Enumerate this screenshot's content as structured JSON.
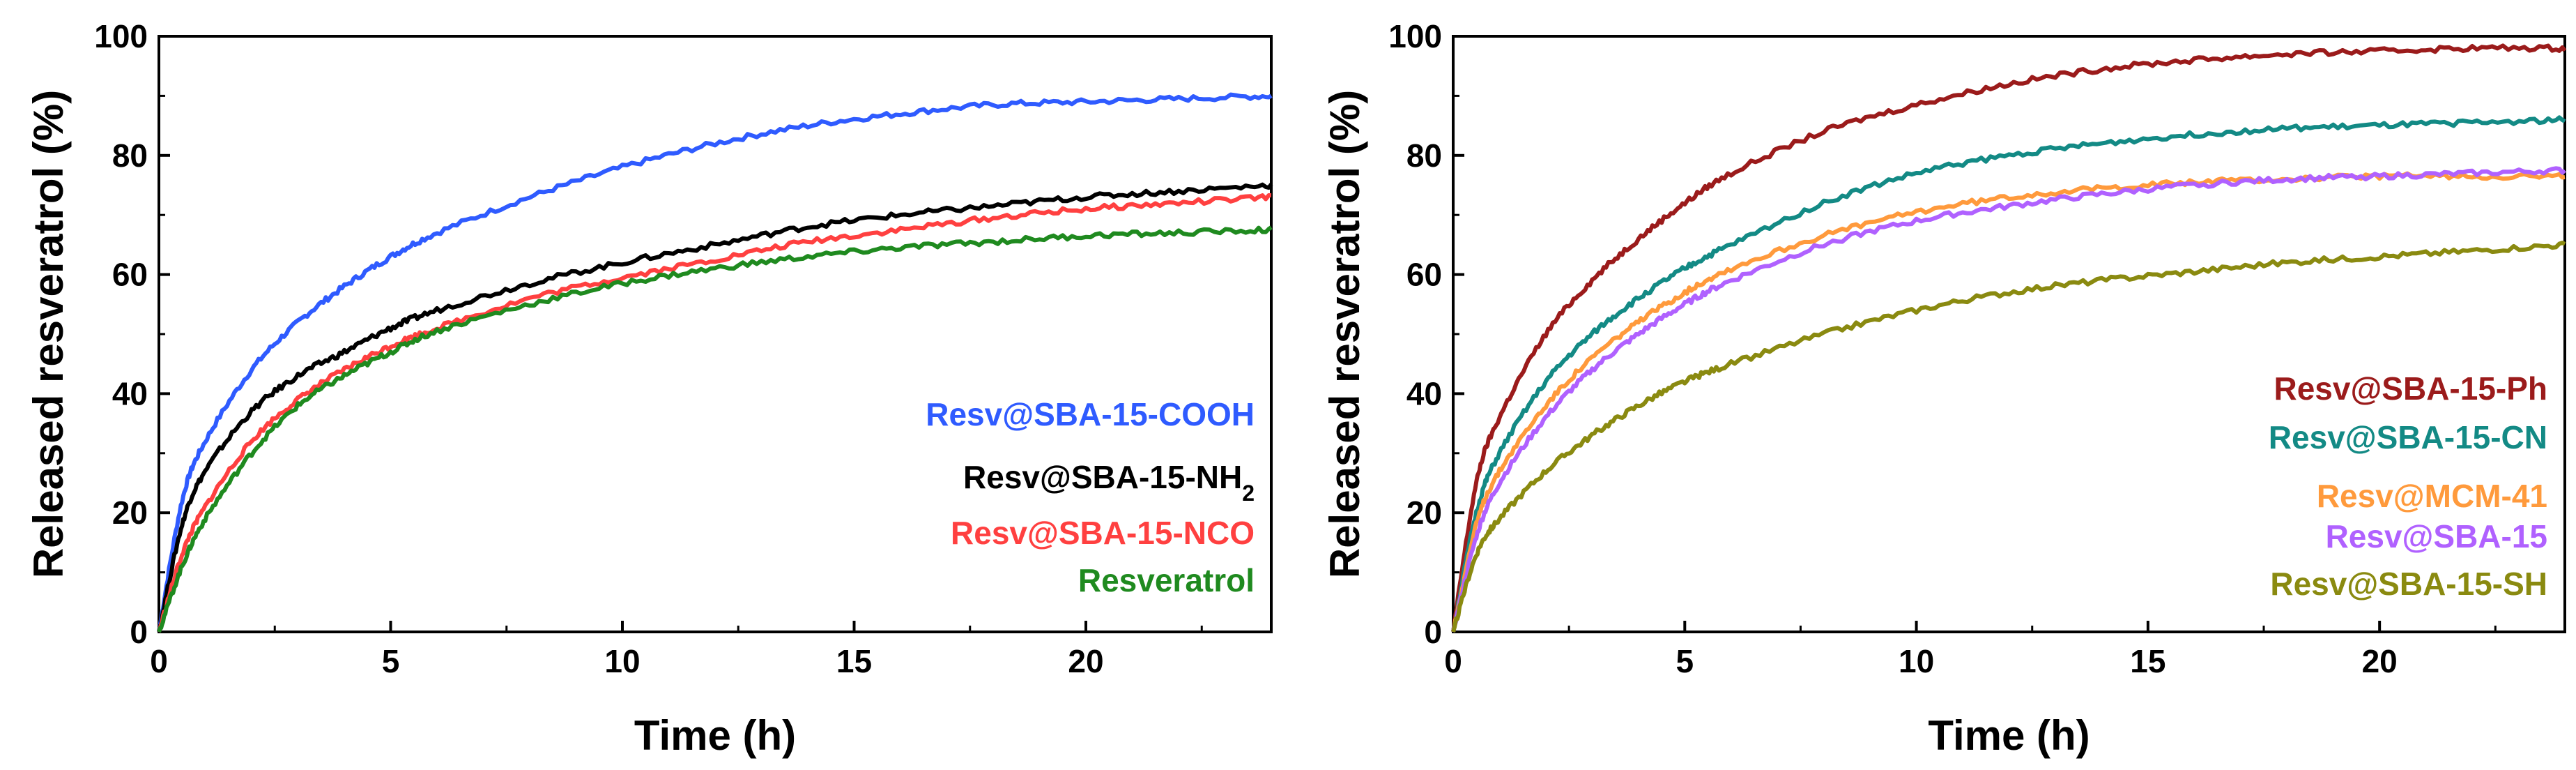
{
  "chart_data": [
    {
      "type": "line",
      "title": "",
      "xlabel": "Time (h)",
      "ylabel": "Released resveratrol (%)",
      "xlim": [
        0,
        24
      ],
      "ylim": [
        0,
        100
      ],
      "xticks": [
        0,
        5,
        10,
        15,
        20
      ],
      "yticks": [
        0,
        20,
        40,
        60,
        80,
        100
      ],
      "legend_position": "bottom-right",
      "series": [
        {
          "name": "Resv@SBA-15-COOH",
          "label_main": "Resv@SBA-15-COOH",
          "label_sub": "",
          "color": "#2f5bff",
          "x": [
            0,
            0.5,
            1,
            2,
            3,
            4,
            5,
            6,
            8,
            10,
            12,
            14,
            16,
            18,
            20,
            22,
            24
          ],
          "y": [
            0,
            22,
            32,
            44,
            52,
            58,
            63,
            67,
            73,
            78,
            82,
            85,
            87,
            88.5,
            89,
            89.5,
            90
          ]
        },
        {
          "name": "Resv@SBA-15-NH2",
          "label_main": "Resv@SBA-15-NH",
          "label_sub": "2",
          "color": "#000000",
          "x": [
            0,
            0.5,
            1,
            2,
            3,
            4,
            5,
            6,
            8,
            10,
            12,
            14,
            16,
            18,
            20,
            22,
            24
          ],
          "y": [
            0,
            18,
            27,
            37,
            43,
            47,
            51,
            54,
            58.5,
            62,
            65,
            68,
            70,
            71.5,
            73,
            74,
            75
          ]
        },
        {
          "name": "Resv@SBA-15-NCO",
          "label_main": "Resv@SBA-15-NCO",
          "label_sub": "",
          "color": "#ff4040",
          "x": [
            0,
            0.5,
            1,
            2,
            3,
            4,
            5,
            6,
            8,
            10,
            12,
            14,
            16,
            18,
            20,
            22,
            24
          ],
          "y": [
            0,
            13,
            21,
            32,
            39,
            44,
            48,
            51,
            56,
            59.5,
            62.5,
            65.5,
            67.5,
            69.5,
            71,
            72,
            73
          ]
        },
        {
          "name": "Resveratrol",
          "label_main": "Resveratrol",
          "label_sub": "",
          "color": "#1f8a1f",
          "x": [
            0,
            0.5,
            1,
            2,
            3,
            4,
            5,
            6,
            8,
            10,
            12,
            14,
            16,
            18,
            20,
            22,
            24
          ],
          "y": [
            0,
            11,
            19,
            30,
            38,
            43,
            47,
            50.5,
            55,
            58.5,
            61,
            63,
            64.5,
            65.5,
            66.5,
            67,
            67.5
          ]
        }
      ]
    },
    {
      "type": "line",
      "title": "",
      "xlabel": "Time (h)",
      "ylabel": "Released resveratrol (%)",
      "xlim": [
        0,
        24
      ],
      "ylim": [
        0,
        100
      ],
      "xticks": [
        0,
        5,
        10,
        15,
        20
      ],
      "yticks": [
        0,
        20,
        40,
        60,
        80,
        100
      ],
      "legend_position": "bottom-right",
      "series": [
        {
          "name": "Resv@SBA-15-Ph",
          "label_main": "Resv@SBA-15-Ph",
          "label_sub": "",
          "color": "#9b1b1b",
          "x": [
            0,
            0.5,
            1,
            2,
            3,
            4,
            5,
            6,
            8,
            10,
            12,
            14,
            16,
            18,
            20,
            22,
            24
          ],
          "y": [
            0,
            25,
            36,
            50,
            59,
            66,
            72,
            77,
            84,
            88.5,
            92,
            94.5,
            96,
            97,
            97.5,
            98,
            98
          ]
        },
        {
          "name": "Resv@SBA-15-CN",
          "label_main": "Resv@SBA-15-CN",
          "label_sub": "",
          "color": "#138a85",
          "x": [
            0,
            0.5,
            1,
            2,
            3,
            4,
            5,
            6,
            8,
            10,
            12,
            14,
            16,
            18,
            20,
            22,
            24
          ],
          "y": [
            0,
            20,
            30,
            42,
            50,
            56,
            61,
            65,
            72,
            77,
            80,
            82,
            83.5,
            84.5,
            85,
            85.5,
            86
          ]
        },
        {
          "name": "Resv@MCM-41",
          "label_main": "Resv@MCM-41",
          "label_sub": "",
          "color": "#ff9a3c",
          "x": [
            0,
            0.5,
            1,
            2,
            3,
            4,
            5,
            6,
            8,
            10,
            12,
            14,
            16,
            18,
            20,
            22,
            24
          ],
          "y": [
            0,
            18,
            27,
            38,
            46,
            52,
            57,
            61,
            66.5,
            70.5,
            73,
            74.5,
            75.5,
            76,
            76.5,
            76.5,
            76.5
          ]
        },
        {
          "name": "Resv@SBA-15",
          "label_main": "Resv@SBA-15",
          "label_sub": "",
          "color": "#b061ff",
          "x": [
            0,
            0.5,
            1,
            2,
            3,
            4,
            5,
            6,
            8,
            10,
            12,
            14,
            16,
            18,
            20,
            22,
            24
          ],
          "y": [
            0,
            16,
            25,
            36,
            44,
            50,
            55,
            59,
            65,
            69,
            71.5,
            73.5,
            75,
            76,
            76.5,
            77,
            77.5
          ]
        },
        {
          "name": "Resv@SBA-15-SH",
          "label_main": "Resv@SBA-15-SH",
          "label_sub": "",
          "color": "#8a8a10",
          "x": [
            0,
            0.5,
            1,
            2,
            3,
            4,
            5,
            6,
            8,
            10,
            12,
            14,
            16,
            18,
            20,
            22,
            24
          ],
          "y": [
            0,
            13,
            19,
            27,
            33,
            38,
            42,
            45,
            50,
            54,
            57,
            59,
            60.5,
            62,
            63,
            64,
            65
          ]
        }
      ]
    }
  ]
}
